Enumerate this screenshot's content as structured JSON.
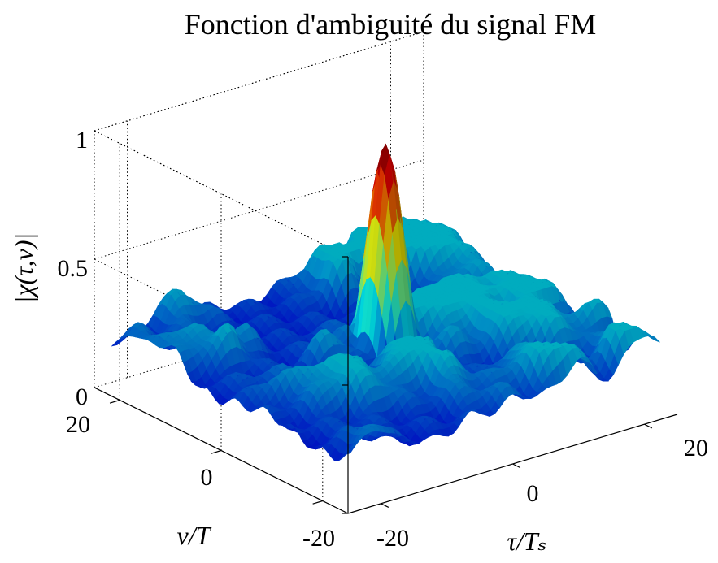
{
  "chart_data": {
    "type": "surface",
    "title": "Fonction d'ambiguité du signal FM",
    "zlabel": "|χ(τ,ν)|",
    "xlabel": "τ/Tₛ",
    "ylabel": "ν/T",
    "x_ticks": [
      "-20",
      "0",
      "20"
    ],
    "y_ticks": [
      "-20",
      "0",
      "20"
    ],
    "z_ticks": [
      "0",
      "0.5",
      "1"
    ],
    "xlim": [
      -25,
      25
    ],
    "ylim": [
      -25,
      25
    ],
    "zlim": [
      0,
      1
    ],
    "grid": true,
    "colormap": "jet",
    "peak": {
      "tau": 0,
      "nu": 0,
      "value": 1.0
    },
    "floor_level": 0.18,
    "sidelobe_max": 0.35
  }
}
